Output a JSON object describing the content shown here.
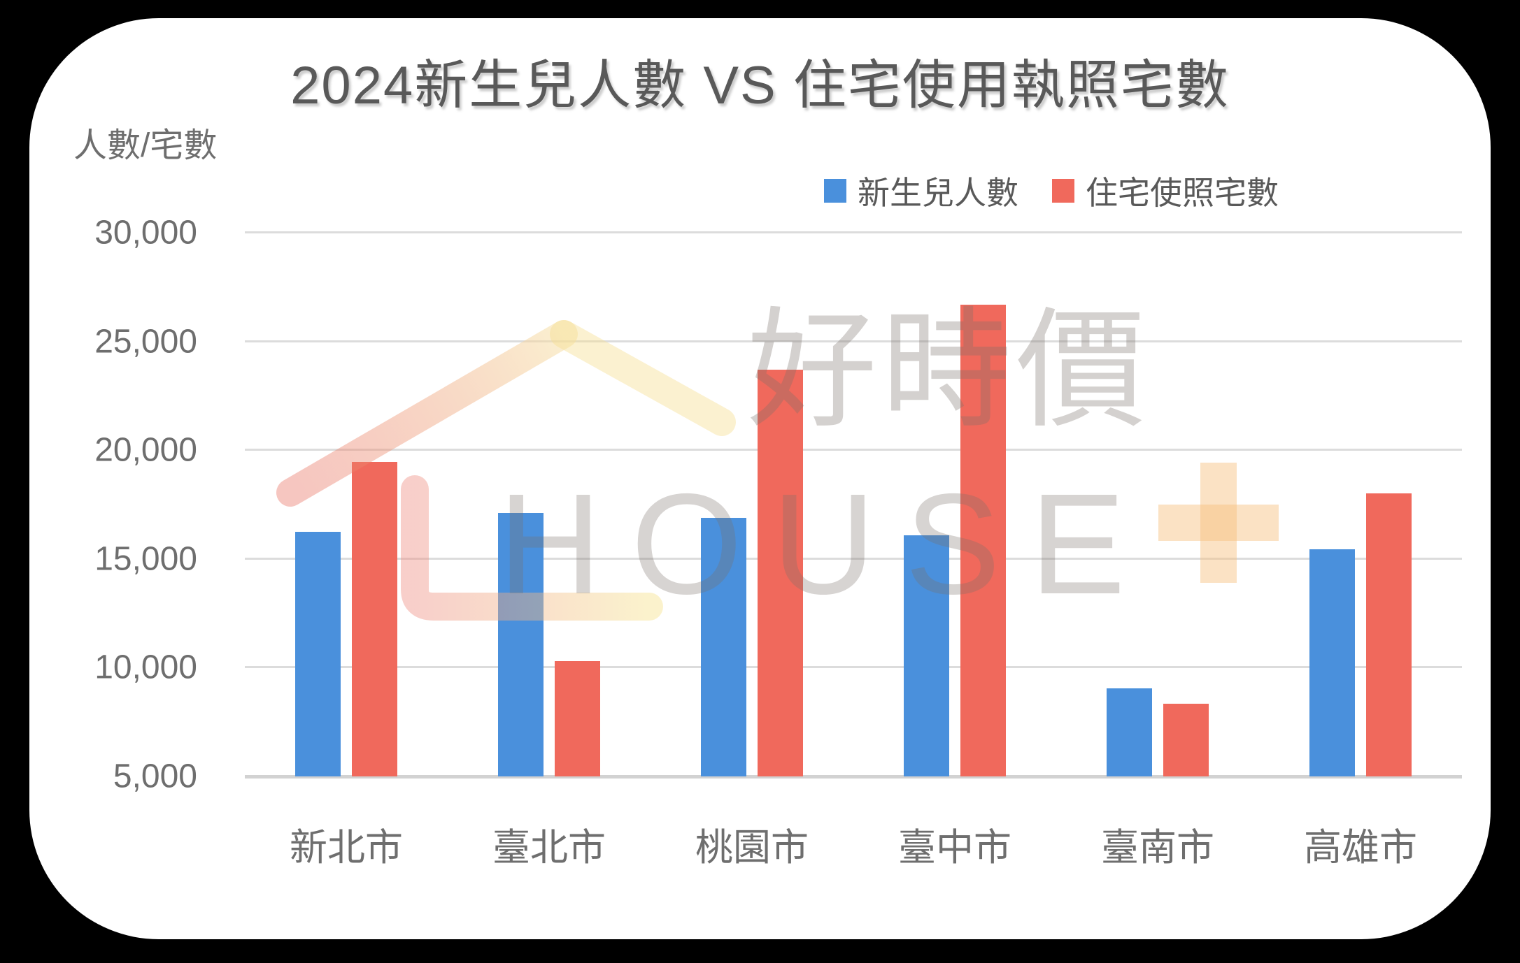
{
  "title": "2024新生兒人數 VS 住宅使用執照宅數",
  "y_axis_label": "人數/宅數",
  "legend": {
    "items": [
      {
        "label": "新生兒人數",
        "color": "#4A90DC"
      },
      {
        "label": "住宅使照宅數",
        "color": "#F0695C"
      }
    ]
  },
  "watermark": {
    "cjk_text": "好時價",
    "latin_text": "HOUSE",
    "plus_sign": "+"
  },
  "colors": {
    "blue_series": "#4A90DC",
    "red_series": "#F0695C",
    "title_text": "#595959",
    "axis_text": "#6E6E6E",
    "gridline": "#DCDCDC"
  },
  "chart_data": {
    "type": "bar",
    "title": "2024新生兒人數 VS 住宅使用執照宅數",
    "categories": [
      "新北市",
      "臺北市",
      "桃園市",
      "臺中市",
      "臺南市",
      "高雄市"
    ],
    "series": [
      {
        "name": "新生兒人數",
        "color": "#4A90DC",
        "values": [
          16250,
          17100,
          16900,
          16100,
          9050,
          15450
        ]
      },
      {
        "name": "住宅使照宅數",
        "color": "#F0695C",
        "values": [
          19450,
          10300,
          23700,
          26700,
          8350,
          18000
        ]
      }
    ],
    "xlabel": "",
    "ylabel": "人數/宅數",
    "ylim": [
      5000,
      30000
    ],
    "yticks": [
      30000,
      25000,
      20000,
      15000,
      10000,
      5000
    ],
    "grid": true,
    "legend_position": "top-right"
  }
}
